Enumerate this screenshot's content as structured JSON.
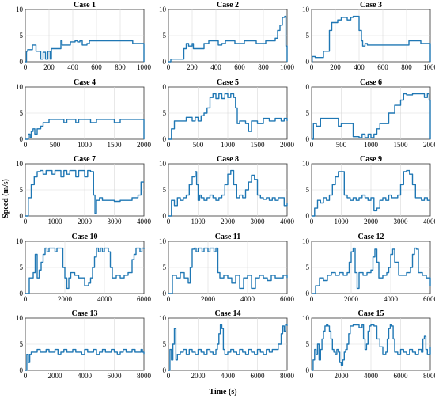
{
  "figure": {
    "ylabel": "Speed (m/s)",
    "xlabel": "Time (s)",
    "line_color": "#1f77b4",
    "grid": true
  },
  "chart_data": [
    {
      "type": "line",
      "title": "Case 1",
      "xlim": [
        0,
        1000
      ],
      "xticks": [
        0,
        200,
        400,
        600,
        800,
        1000
      ],
      "ylim": [
        0,
        10
      ],
      "yticks": [
        0,
        5,
        10
      ],
      "x": [
        0,
        10,
        20,
        60,
        90,
        130,
        150,
        170,
        190,
        210,
        220,
        300,
        310,
        380,
        420,
        440,
        460,
        480,
        520,
        540,
        900,
        905,
        990,
        1000
      ],
      "y": [
        0,
        2,
        2.3,
        3.2,
        2,
        0.5,
        1.8,
        0.5,
        2,
        0.5,
        2.5,
        4,
        3.2,
        3.8,
        4,
        3.8,
        4,
        3.2,
        3.5,
        4,
        4,
        3.5,
        3.5,
        0
      ]
    },
    {
      "type": "line",
      "title": "Case 2",
      "xlim": [
        0,
        1000
      ],
      "xticks": [
        0,
        200,
        400,
        600,
        800,
        1000
      ],
      "ylim": [
        0,
        10
      ],
      "yticks": [
        0,
        5,
        10
      ],
      "x": [
        0,
        20,
        100,
        130,
        150,
        170,
        200,
        210,
        300,
        320,
        340,
        420,
        450,
        480,
        560,
        600,
        640,
        740,
        780,
        820,
        880,
        900,
        920,
        940,
        960,
        980,
        990,
        1000
      ],
      "y": [
        0,
        0.5,
        0.5,
        2.5,
        3.5,
        3,
        3.5,
        2.5,
        3.5,
        3.5,
        4,
        3.2,
        3.5,
        4,
        3.5,
        3.5,
        4,
        3.5,
        3.5,
        4,
        4,
        4.5,
        6,
        7,
        8.5,
        8.7,
        3,
        0
      ]
    },
    {
      "type": "line",
      "title": "Case 3",
      "xlim": [
        0,
        1000
      ],
      "xticks": [
        0,
        200,
        400,
        600,
        800,
        1000
      ],
      "ylim": [
        0,
        10
      ],
      "yticks": [
        0,
        5,
        10
      ],
      "x": [
        0,
        5,
        30,
        80,
        100,
        150,
        170,
        200,
        220,
        250,
        300,
        330,
        350,
        380,
        400,
        420,
        430,
        450,
        470,
        800,
        820,
        900,
        920,
        990,
        1000
      ],
      "y": [
        0,
        1,
        0.8,
        0.8,
        2,
        6,
        7.5,
        7.5,
        8,
        8.5,
        8,
        8.5,
        8.7,
        8.7,
        6,
        4,
        3,
        3.5,
        3.2,
        3.2,
        4,
        4,
        3.5,
        3.5,
        0
      ]
    },
    {
      "type": "line",
      "title": "Case 4",
      "xlim": [
        0,
        2000
      ],
      "xticks": [
        0,
        500,
        1000,
        1500,
        2000
      ],
      "ylim": [
        0,
        10
      ],
      "yticks": [
        0,
        5,
        10
      ],
      "x": [
        0,
        50,
        80,
        100,
        130,
        160,
        200,
        260,
        300,
        400,
        600,
        650,
        700,
        800,
        850,
        900,
        1000,
        1100,
        1200,
        1400,
        1500,
        1600,
        1700,
        1800,
        1990,
        2000
      ],
      "y": [
        0,
        1,
        0.3,
        1.5,
        2,
        1,
        2,
        2.5,
        3.2,
        3.8,
        3.8,
        3.2,
        3.8,
        3.8,
        3.2,
        3.8,
        3.8,
        3.2,
        3.8,
        3.8,
        3.2,
        3.8,
        3.8,
        3.8,
        3.8,
        0
      ]
    },
    {
      "type": "line",
      "title": "Case 5",
      "xlim": [
        0,
        2000
      ],
      "xticks": [
        0,
        500,
        1000,
        1500,
        2000
      ],
      "ylim": [
        0,
        10
      ],
      "yticks": [
        0,
        5,
        10
      ],
      "x": [
        0,
        50,
        100,
        200,
        300,
        400,
        450,
        500,
        550,
        600,
        650,
        700,
        750,
        800,
        850,
        900,
        950,
        1000,
        1050,
        1100,
        1130,
        1160,
        1200,
        1300,
        1350,
        1400,
        1500,
        1600,
        1700,
        1800,
        1900,
        1950,
        2000
      ],
      "y": [
        0,
        2,
        3.5,
        3.5,
        4.2,
        3.5,
        4.2,
        3.5,
        4.5,
        5,
        6,
        8,
        8.7,
        7.8,
        8.7,
        7.8,
        8.7,
        8,
        8.7,
        8,
        6,
        3,
        3.5,
        3,
        1.5,
        3.5,
        3,
        4,
        3.5,
        4,
        3.5,
        4,
        3.5
      ]
    },
    {
      "type": "line",
      "title": "Case 6",
      "xlim": [
        0,
        2000
      ],
      "xticks": [
        0,
        500,
        1000,
        1500,
        2000
      ],
      "ylim": [
        0,
        10
      ],
      "yticks": [
        0,
        5,
        10
      ],
      "x": [
        0,
        30,
        80,
        150,
        200,
        400,
        450,
        500,
        600,
        700,
        800,
        850,
        900,
        950,
        1000,
        1050,
        1100,
        1150,
        1200,
        1300,
        1400,
        1500,
        1550,
        1600,
        1700,
        1800,
        1900,
        1950,
        1980,
        2000
      ],
      "y": [
        0,
        3,
        2.5,
        4,
        4,
        4,
        2.5,
        3,
        3,
        0.5,
        0.3,
        1,
        0.3,
        1,
        0.3,
        1,
        2,
        3,
        3,
        5,
        6.5,
        7.5,
        8.7,
        8.5,
        8.7,
        8.7,
        8,
        8.7,
        7.5,
        0
      ]
    },
    {
      "type": "line",
      "title": "Case 7",
      "xlim": [
        0,
        4000
      ],
      "xticks": [
        0,
        1000,
        2000,
        3000,
        4000
      ],
      "ylim": [
        0,
        10
      ],
      "yticks": [
        0,
        5,
        10
      ],
      "x": [
        0,
        100,
        200,
        300,
        400,
        500,
        600,
        700,
        800,
        900,
        1000,
        1100,
        1200,
        1300,
        1400,
        1500,
        1600,
        1700,
        1800,
        1900,
        2000,
        2100,
        2200,
        2300,
        2350,
        2400,
        2500,
        2600,
        2800,
        3000,
        3200,
        3400,
        3600,
        3800,
        3900,
        4000
      ],
      "y": [
        0,
        3.5,
        6,
        7.5,
        8.5,
        8.7,
        8,
        8.7,
        8.7,
        8,
        8.7,
        8.7,
        7.5,
        8.7,
        8,
        8.7,
        8.7,
        7.5,
        8.7,
        8.7,
        7.5,
        8.7,
        8.5,
        4,
        0.5,
        3,
        3.5,
        3,
        3,
        2.8,
        3,
        3,
        3.5,
        4,
        6.5,
        6.5
      ]
    },
    {
      "type": "line",
      "title": "Case 8",
      "xlim": [
        0,
        4000
      ],
      "xticks": [
        0,
        1000,
        2000,
        3000,
        4000
      ],
      "ylim": [
        0,
        10
      ],
      "yticks": [
        0,
        5,
        10
      ],
      "x": [
        0,
        100,
        200,
        300,
        400,
        500,
        600,
        700,
        800,
        900,
        950,
        1000,
        1050,
        1100,
        1200,
        1300,
        1400,
        1500,
        1600,
        1700,
        1800,
        1900,
        2000,
        2100,
        2200,
        2300,
        2400,
        2500,
        2600,
        2700,
        2800,
        2900,
        3000,
        3100,
        3200,
        3300,
        3400,
        3500,
        3600,
        3700,
        3800,
        3900,
        4000
      ],
      "y": [
        0,
        3,
        2,
        3.5,
        3,
        3.5,
        4,
        6,
        7.5,
        8.5,
        6,
        3,
        4,
        3.5,
        3,
        3.5,
        4,
        3.5,
        3,
        3.5,
        4,
        6,
        8,
        8.7,
        6,
        3.5,
        4,
        3.5,
        5,
        6.5,
        7.8,
        7,
        4,
        3.5,
        3.2,
        3.5,
        3,
        3.5,
        3,
        3.5,
        3.5,
        2,
        2.5
      ]
    },
    {
      "type": "line",
      "title": "Case 9",
      "xlim": [
        0,
        4000
      ],
      "xticks": [
        0,
        1000,
        2000,
        3000,
        4000
      ],
      "ylim": [
        0,
        10
      ],
      "yticks": [
        0,
        5,
        10
      ],
      "x": [
        0,
        100,
        200,
        300,
        400,
        500,
        600,
        700,
        800,
        900,
        1000,
        1100,
        1200,
        1300,
        1400,
        1500,
        1600,
        1700,
        1800,
        1900,
        2000,
        2100,
        2200,
        2300,
        2400,
        2500,
        2600,
        2700,
        2800,
        2900,
        3000,
        3100,
        3200,
        3300,
        3400,
        3500,
        3600,
        3700,
        3800,
        3900,
        4000
      ],
      "y": [
        0,
        1.5,
        3,
        2.5,
        3.5,
        3,
        4,
        6,
        7.5,
        8.5,
        8.5,
        4,
        3.5,
        3,
        3.5,
        3,
        3.5,
        4,
        3.5,
        3,
        3.5,
        1,
        1.5,
        3,
        3.5,
        3,
        4,
        3.5,
        3.5,
        4,
        6,
        8.5,
        8.7,
        8,
        6,
        3.5,
        3.5,
        3,
        3.5,
        3,
        3
      ]
    },
    {
      "type": "line",
      "title": "Case 10",
      "xlim": [
        0,
        6000
      ],
      "xticks": [
        0,
        2000,
        4000,
        6000
      ],
      "ylim": [
        0,
        10
      ],
      "yticks": [
        0,
        5,
        10
      ],
      "x": [
        0,
        200,
        400,
        500,
        600,
        700,
        800,
        900,
        1000,
        1100,
        1200,
        1300,
        1400,
        1500,
        1600,
        1700,
        1800,
        1900,
        2000,
        2100,
        2200,
        2300,
        2400,
        2500,
        2700,
        3000,
        3200,
        3300,
        3400,
        3500,
        3600,
        3700,
        3800,
        3900,
        4000,
        4100,
        4200,
        4300,
        4400,
        4600,
        4800,
        5000,
        5200,
        5400,
        5500,
        5600,
        5700,
        5800,
        5900,
        6000
      ],
      "y": [
        0,
        3,
        4,
        7.5,
        3,
        4.5,
        6,
        7.5,
        8.7,
        8,
        8.7,
        8.7,
        8.7,
        8,
        8.7,
        8.7,
        8.7,
        5,
        3,
        1,
        3,
        4,
        4,
        3.5,
        3,
        1.5,
        2,
        3,
        5,
        7,
        8.7,
        8,
        8.7,
        8,
        8.7,
        8.7,
        8,
        5,
        3,
        3.5,
        3,
        3.5,
        4,
        6.5,
        7.5,
        8.7,
        8.7,
        8,
        8.7,
        8.5
      ]
    },
    {
      "type": "line",
      "title": "Case 11",
      "xlim": [
        0,
        6000
      ],
      "xticks": [
        0,
        2000,
        4000,
        6000
      ],
      "ylim": [
        0,
        10
      ],
      "yticks": [
        0,
        5,
        10
      ],
      "x": [
        0,
        200,
        400,
        600,
        800,
        1000,
        1100,
        1200,
        1300,
        1400,
        1500,
        1600,
        1700,
        1800,
        1900,
        2000,
        2100,
        2200,
        2300,
        2400,
        2500,
        2600,
        2800,
        3000,
        3200,
        3400,
        3600,
        3800,
        4000,
        4200,
        4400,
        4600,
        4800,
        5000,
        5200,
        5400,
        5600,
        5800,
        6000
      ],
      "y": [
        0,
        3.5,
        3,
        4,
        3,
        2,
        5,
        8.5,
        8.7,
        8,
        8.7,
        8.7,
        8,
        8.7,
        8.7,
        8,
        8.7,
        8.7,
        8,
        8.7,
        4,
        3,
        3.5,
        3,
        2,
        3.5,
        1,
        3,
        3.5,
        1,
        3,
        3.5,
        3,
        2.5,
        3.5,
        3,
        3,
        3.5,
        3
      ]
    },
    {
      "type": "line",
      "title": "Case 12",
      "xlim": [
        0,
        6000
      ],
      "xticks": [
        0,
        2000,
        4000,
        6000
      ],
      "ylim": [
        0,
        10
      ],
      "yticks": [
        0,
        5,
        10
      ],
      "x": [
        0,
        200,
        400,
        600,
        800,
        1000,
        1200,
        1400,
        1600,
        1800,
        1900,
        2000,
        2100,
        2200,
        2300,
        2400,
        2600,
        2800,
        3000,
        3100,
        3200,
        3300,
        3400,
        3600,
        3800,
        3900,
        4000,
        4100,
        4200,
        4400,
        4600,
        4800,
        5000,
        5100,
        5200,
        5300,
        5400,
        5600,
        5800,
        6000
      ],
      "y": [
        0,
        1.5,
        3,
        2.5,
        3.5,
        4,
        3.5,
        4,
        3.5,
        4,
        6,
        8,
        8.7,
        4,
        1,
        4,
        3.5,
        4,
        4.5,
        7,
        8.5,
        6,
        3,
        3.5,
        4,
        5,
        7.5,
        8.5,
        6,
        3.5,
        3.5,
        4,
        5,
        7.5,
        8.7,
        8.5,
        4,
        3.5,
        3,
        1.5
      ]
    },
    {
      "type": "line",
      "title": "Case 13",
      "xlim": [
        0,
        8000
      ],
      "xticks": [
        0,
        2000,
        4000,
        6000,
        8000
      ],
      "ylim": [
        0,
        10
      ],
      "yticks": [
        0,
        5,
        10
      ],
      "x": [
        0,
        100,
        200,
        300,
        400,
        600,
        800,
        1000,
        1200,
        1400,
        1600,
        1800,
        2000,
        2200,
        2400,
        2600,
        2800,
        3000,
        3200,
        3400,
        3600,
        3800,
        4000,
        4200,
        4400,
        4600,
        4800,
        5000,
        5200,
        5400,
        5600,
        5800,
        6000,
        6200,
        6400,
        6600,
        6800,
        7000,
        7200,
        7400,
        7600,
        7800,
        7900,
        8000
      ],
      "y": [
        0,
        3,
        1.5,
        3,
        3.5,
        3.5,
        4,
        3.5,
        3.5,
        4,
        3.5,
        3.5,
        4,
        3,
        3.5,
        4,
        3.5,
        3.5,
        4,
        3.5,
        3.5,
        3,
        4,
        3.5,
        3.5,
        4,
        3,
        3.5,
        4,
        3.5,
        3.5,
        4,
        3.5,
        3,
        3.5,
        4,
        3.5,
        3.5,
        4,
        3.5,
        3.5,
        4,
        3.5,
        3
      ]
    },
    {
      "type": "line",
      "title": "Case 14",
      "xlim": [
        0,
        8000
      ],
      "xticks": [
        0,
        2000,
        4000,
        6000,
        8000
      ],
      "ylim": [
        0,
        10
      ],
      "yticks": [
        0,
        5,
        10
      ],
      "x": [
        0,
        100,
        200,
        300,
        400,
        500,
        600,
        800,
        1000,
        1200,
        1400,
        1600,
        1800,
        2000,
        2200,
        2400,
        2600,
        2800,
        3000,
        3200,
        3300,
        3400,
        3500,
        3600,
        3700,
        3800,
        4000,
        4200,
        4400,
        4600,
        4800,
        5000,
        5200,
        5400,
        5600,
        5800,
        6000,
        6200,
        6400,
        6600,
        6800,
        7000,
        7200,
        7400,
        7600,
        7700,
        7800,
        7900,
        8000
      ],
      "y": [
        0,
        4,
        2,
        5,
        8,
        2,
        3,
        3.5,
        4,
        3,
        4,
        3.5,
        3,
        4,
        3.5,
        3,
        4,
        3.5,
        3,
        4,
        5,
        7,
        8.7,
        8,
        4,
        3,
        3.5,
        4,
        3.5,
        3,
        4,
        3.5,
        3,
        4,
        3.5,
        3,
        4,
        3.5,
        3,
        4,
        3.5,
        4,
        4,
        5,
        7,
        8.5,
        7.5,
        8.7,
        8.5
      ]
    },
    {
      "type": "line",
      "title": "Case 15",
      "xlim": [
        0,
        8000
      ],
      "xticks": [
        0,
        2000,
        4000,
        6000,
        8000
      ],
      "ylim": [
        0,
        10
      ],
      "yticks": [
        0,
        5,
        10
      ],
      "x": [
        0,
        100,
        200,
        300,
        400,
        500,
        600,
        700,
        800,
        900,
        1000,
        1100,
        1200,
        1300,
        1400,
        1500,
        1600,
        1700,
        1800,
        1900,
        2000,
        2100,
        2200,
        2300,
        2400,
        2500,
        2600,
        2800,
        3000,
        3200,
        3400,
        3500,
        3600,
        3700,
        3800,
        3900,
        4000,
        4200,
        4400,
        4600,
        4800,
        5000,
        5100,
        5200,
        5300,
        5400,
        5500,
        5600,
        5800,
        6000,
        6200,
        6400,
        6600,
        6800,
        7000,
        7200,
        7400,
        7500,
        7600,
        7700,
        7800,
        8000
      ],
      "y": [
        0,
        2,
        4,
        3,
        5,
        2,
        4,
        6,
        7.5,
        8.5,
        8.7,
        8.5,
        7.5,
        6,
        4,
        3.5,
        3,
        4,
        3.5,
        1.5,
        1,
        2,
        3.5,
        4,
        5,
        7,
        8.5,
        8.7,
        8.7,
        8.2,
        8.7,
        6,
        4,
        5,
        7.5,
        8.5,
        8.7,
        8.5,
        6,
        4.5,
        3,
        3.5,
        6,
        8,
        8.7,
        8.5,
        6,
        3.5,
        3,
        4,
        3.5,
        3,
        4,
        3.5,
        3,
        4,
        3.5,
        6,
        6.5,
        4,
        3,
        4.5
      ]
    }
  ]
}
